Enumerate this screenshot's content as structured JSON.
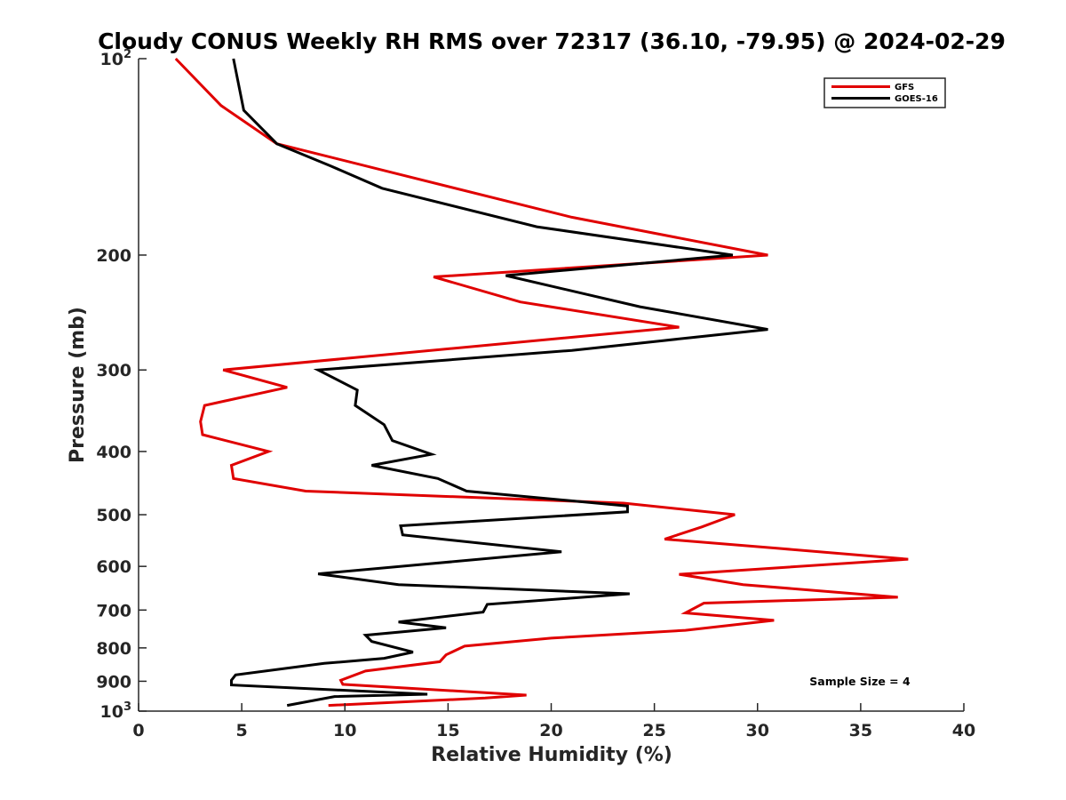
{
  "chart_data": {
    "type": "line",
    "title": "Cloudy CONUS Weekly RH RMS over 72317 (36.10, -79.95) @ 2024-02-29",
    "xlabel": "Relative Humidity (%)",
    "ylabel": "Pressure (mb)",
    "xlim": [
      0,
      40
    ],
    "ylim": [
      100,
      1000
    ],
    "y_scale": "log",
    "y_reversed": true,
    "x_ticks": [
      "0",
      "5",
      "10",
      "15",
      "20",
      "25",
      "30",
      "35",
      "40"
    ],
    "x_tick_values": [
      0,
      5,
      10,
      15,
      20,
      25,
      30,
      35,
      40
    ],
    "y_ticks": [
      {
        "value": 100,
        "base": "10",
        "exp": "2"
      },
      {
        "value": 200,
        "label": "200"
      },
      {
        "value": 300,
        "label": "300"
      },
      {
        "value": 400,
        "label": "400"
      },
      {
        "value": 500,
        "label": "500"
      },
      {
        "value": 600,
        "label": "600"
      },
      {
        "value": 700,
        "label": "700"
      },
      {
        "value": 800,
        "label": "800"
      },
      {
        "value": 900,
        "label": "900"
      },
      {
        "value": 1000,
        "base": "10",
        "exp": "3"
      }
    ],
    "grid": false,
    "legend_position": "top-right",
    "annotation": "Sample Size = 4",
    "series": [
      {
        "name": "GFS",
        "color": "#e00000",
        "points": [
          {
            "x": 1.8,
            "y": 100
          },
          {
            "x": 4.0,
            "y": 118
          },
          {
            "x": 6.7,
            "y": 135
          },
          {
            "x": 12.5,
            "y": 150
          },
          {
            "x": 21.0,
            "y": 175
          },
          {
            "x": 30.5,
            "y": 200
          },
          {
            "x": 14.3,
            "y": 216
          },
          {
            "x": 18.5,
            "y": 236
          },
          {
            "x": 26.2,
            "y": 258
          },
          {
            "x": 4.1,
            "y": 300
          },
          {
            "x": 7.2,
            "y": 319
          },
          {
            "x": 3.2,
            "y": 340
          },
          {
            "x": 3.0,
            "y": 360
          },
          {
            "x": 3.1,
            "y": 377
          },
          {
            "x": 6.3,
            "y": 400
          },
          {
            "x": 4.5,
            "y": 420
          },
          {
            "x": 4.6,
            "y": 440
          },
          {
            "x": 8.1,
            "y": 460
          },
          {
            "x": 23.5,
            "y": 480
          },
          {
            "x": 28.9,
            "y": 500
          },
          {
            "x": 27.3,
            "y": 522
          },
          {
            "x": 25.5,
            "y": 545
          },
          {
            "x": 31.0,
            "y": 563
          },
          {
            "x": 37.3,
            "y": 585
          },
          {
            "x": 26.2,
            "y": 617
          },
          {
            "x": 29.3,
            "y": 640
          },
          {
            "x": 36.8,
            "y": 669
          },
          {
            "x": 27.4,
            "y": 683
          },
          {
            "x": 26.5,
            "y": 707
          },
          {
            "x": 30.8,
            "y": 726
          },
          {
            "x": 26.5,
            "y": 752
          },
          {
            "x": 20.0,
            "y": 773
          },
          {
            "x": 15.8,
            "y": 795
          },
          {
            "x": 14.9,
            "y": 820
          },
          {
            "x": 14.6,
            "y": 840
          },
          {
            "x": 11.0,
            "y": 868
          },
          {
            "x": 9.8,
            "y": 897
          },
          {
            "x": 9.9,
            "y": 910
          },
          {
            "x": 18.8,
            "y": 945
          },
          {
            "x": 16.8,
            "y": 955
          },
          {
            "x": 9.2,
            "y": 980
          }
        ]
      },
      {
        "name": "GOES-16",
        "color": "#000000",
        "points": [
          {
            "x": 4.6,
            "y": 100
          },
          {
            "x": 5.1,
            "y": 120
          },
          {
            "x": 6.7,
            "y": 135
          },
          {
            "x": 9.3,
            "y": 146
          },
          {
            "x": 11.8,
            "y": 158
          },
          {
            "x": 19.3,
            "y": 181
          },
          {
            "x": 28.8,
            "y": 200
          },
          {
            "x": 17.8,
            "y": 215
          },
          {
            "x": 24.3,
            "y": 240
          },
          {
            "x": 30.5,
            "y": 260
          },
          {
            "x": 21.0,
            "y": 280
          },
          {
            "x": 8.7,
            "y": 300
          },
          {
            "x": 10.6,
            "y": 322
          },
          {
            "x": 10.5,
            "y": 340
          },
          {
            "x": 11.9,
            "y": 364
          },
          {
            "x": 12.3,
            "y": 385
          },
          {
            "x": 14.2,
            "y": 404
          },
          {
            "x": 11.3,
            "y": 420
          },
          {
            "x": 14.5,
            "y": 440
          },
          {
            "x": 15.9,
            "y": 460
          },
          {
            "x": 23.7,
            "y": 485
          },
          {
            "x": 23.7,
            "y": 495
          },
          {
            "x": 12.7,
            "y": 520
          },
          {
            "x": 12.8,
            "y": 537
          },
          {
            "x": 20.5,
            "y": 570
          },
          {
            "x": 8.7,
            "y": 616
          },
          {
            "x": 12.6,
            "y": 640
          },
          {
            "x": 23.8,
            "y": 661
          },
          {
            "x": 16.9,
            "y": 686
          },
          {
            "x": 16.7,
            "y": 705
          },
          {
            "x": 12.6,
            "y": 730
          },
          {
            "x": 14.9,
            "y": 745
          },
          {
            "x": 11.0,
            "y": 765
          },
          {
            "x": 11.3,
            "y": 782
          },
          {
            "x": 13.3,
            "y": 812
          },
          {
            "x": 11.9,
            "y": 830
          },
          {
            "x": 9.0,
            "y": 845
          },
          {
            "x": 4.7,
            "y": 880
          },
          {
            "x": 4.5,
            "y": 897
          },
          {
            "x": 4.5,
            "y": 912
          },
          {
            "x": 14.0,
            "y": 942
          },
          {
            "x": 9.5,
            "y": 950
          },
          {
            "x": 7.2,
            "y": 980
          }
        ]
      }
    ]
  }
}
